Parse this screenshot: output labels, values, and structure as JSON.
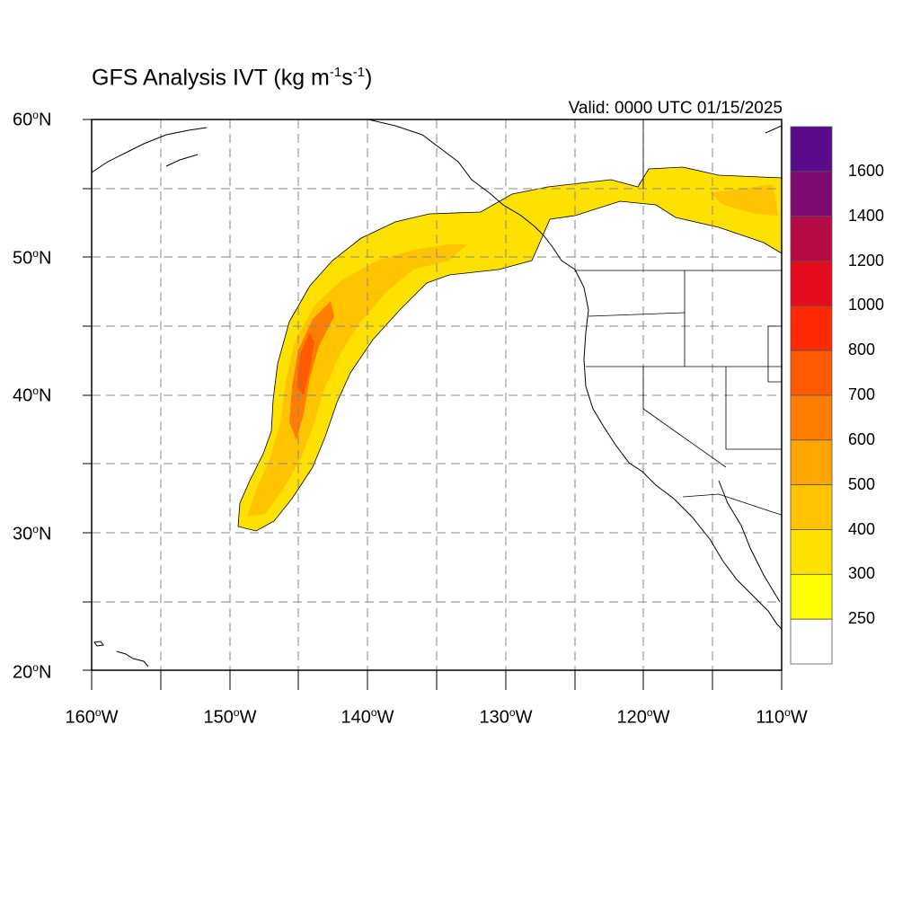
{
  "title": {
    "prefix": "GFS Analysis IVT (kg m",
    "exp1": "-1",
    "mid": "s",
    "exp2": "-1",
    "suffix": ")"
  },
  "valid_time": "Valid: 0000 UTC 01/15/2025",
  "latitude_labels": [
    {
      "deg": "60",
      "hem": "N"
    },
    {
      "deg": "50",
      "hem": "N"
    },
    {
      "deg": "40",
      "hem": "N"
    },
    {
      "deg": "30",
      "hem": "N"
    },
    {
      "deg": "20",
      "hem": "N"
    }
  ],
  "longitude_labels": [
    {
      "deg": "160",
      "hem": "W"
    },
    {
      "deg": "150",
      "hem": "W"
    },
    {
      "deg": "140",
      "hem": "W"
    },
    {
      "deg": "130",
      "hem": "W"
    },
    {
      "deg": "120",
      "hem": "W"
    },
    {
      "deg": "110",
      "hem": "W"
    }
  ],
  "map_extent": {
    "lon": [
      -160,
      -110
    ],
    "lat": [
      20,
      60
    ]
  },
  "colorbar": {
    "labels": [
      "1600",
      "1400",
      "1200",
      "1000",
      "800",
      "700",
      "600",
      "500",
      "400",
      "300",
      "250"
    ],
    "bins": [
      {
        "color": "#5a0a8c"
      },
      {
        "color": "#7d0a6e"
      },
      {
        "color": "#b40a46"
      },
      {
        "color": "#e60a1e"
      },
      {
        "color": "#ff2800"
      },
      {
        "color": "#ff5a00"
      },
      {
        "color": "#ff7d00"
      },
      {
        "color": "#ffa500"
      },
      {
        "color": "#ffc300"
      },
      {
        "color": "#ffe100"
      },
      {
        "color": "#ffff00"
      },
      {
        "color": "#ffffff"
      }
    ]
  },
  "ivt_plume": {
    "outer_color": "#ffe100",
    "mid_color": "#ffc300",
    "core_color": "#ff7d00",
    "max_color": "#ff5a00"
  }
}
